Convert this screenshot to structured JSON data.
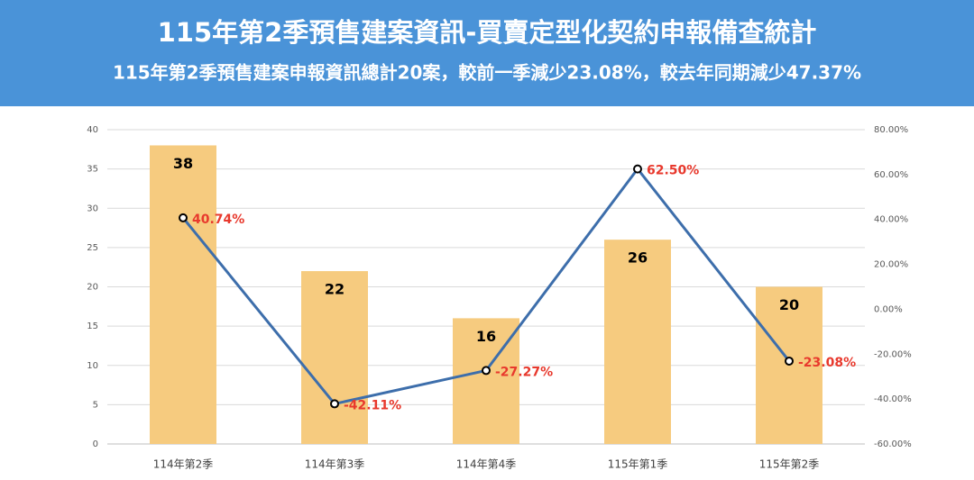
{
  "chart_data": {
    "type": "bar-line",
    "title": "115年第2季預售建案資訊-買賣定型化契約申報備查統計",
    "subtitle": "115年第2季預售建案申報資訊總計20案，較前一季減少23.08%，較去年同期減少47.37%",
    "categories": [
      "114年第2季",
      "114年第3季",
      "114年第4季",
      "115年第1季",
      "115年第2季"
    ],
    "series": [
      {
        "type": "bar",
        "color": "#f6cb7f",
        "values": [
          38,
          22,
          16,
          26,
          20
        ]
      },
      {
        "type": "line",
        "axis": "y2",
        "color": "#3d6eab",
        "label_color": "#e8392d",
        "values": [
          40.74,
          -42.11,
          -27.27,
          62.5,
          -23.08
        ],
        "value_labels": [
          "40.74%",
          "-42.11%",
          "-27.27%",
          "62.50%",
          "-23.08%"
        ]
      }
    ],
    "ylim": [
      0,
      40
    ],
    "yticks": [
      0,
      5,
      10,
      15,
      20,
      25,
      30,
      35,
      40
    ],
    "y2lim": [
      -60,
      80
    ],
    "y2ticks": [
      {
        "value": -60,
        "label": "-60.00%"
      },
      {
        "value": -40,
        "label": "-40.00%"
      },
      {
        "value": -20,
        "label": "-20.00%"
      },
      {
        "value": 0,
        "label": "0.00%"
      },
      {
        "value": 20,
        "label": "20.00%"
      },
      {
        "value": 40,
        "label": "40.00%"
      },
      {
        "value": 60,
        "label": "60.00%"
      },
      {
        "value": 80,
        "label": "80.00%"
      }
    ],
    "grid": true
  }
}
